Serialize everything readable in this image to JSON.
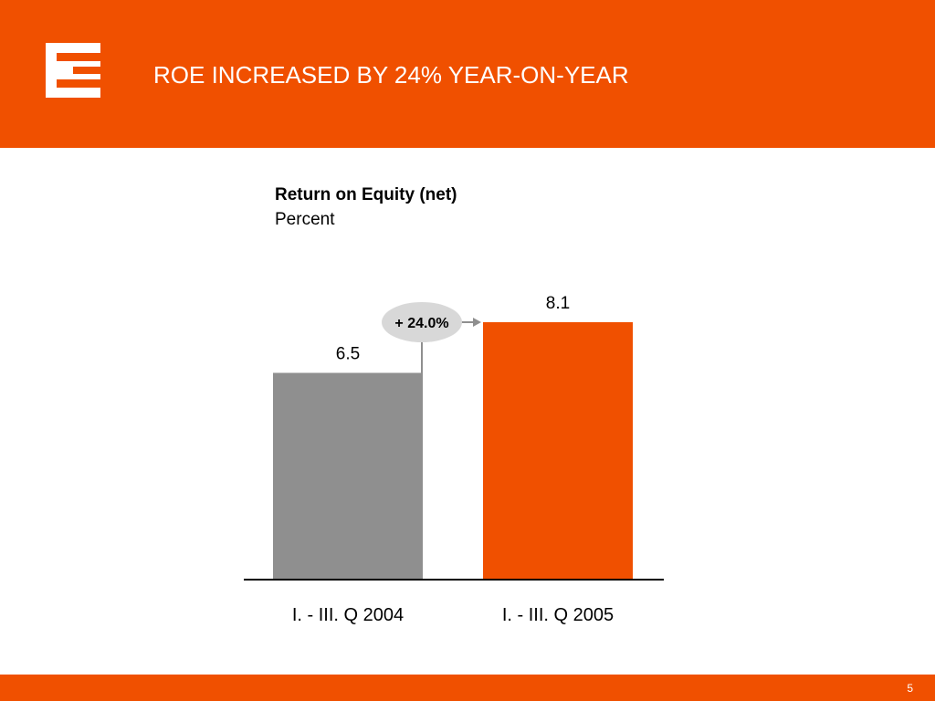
{
  "slide": {
    "title": "ROE INCREASED BY 24% YEAR-ON-YEAR",
    "page_number": "5",
    "brand_color": "#f05000",
    "logo_icon": "cez-e-logo-icon"
  },
  "chart_data": {
    "type": "bar",
    "title": "Return on Equity (net)",
    "subtitle": "Percent",
    "categories": [
      "I. - III. Q 2004",
      "I. - III. Q 2005"
    ],
    "values": [
      6.5,
      8.1
    ],
    "value_labels": [
      "6.5",
      "8.1"
    ],
    "colors": [
      "#8f8f8f",
      "#f05000"
    ],
    "change_label": "+ 24.0%",
    "change_badge_color": "#d8d8d8",
    "grid": false,
    "legend": "none",
    "ylim": [
      0,
      8.1
    ]
  }
}
